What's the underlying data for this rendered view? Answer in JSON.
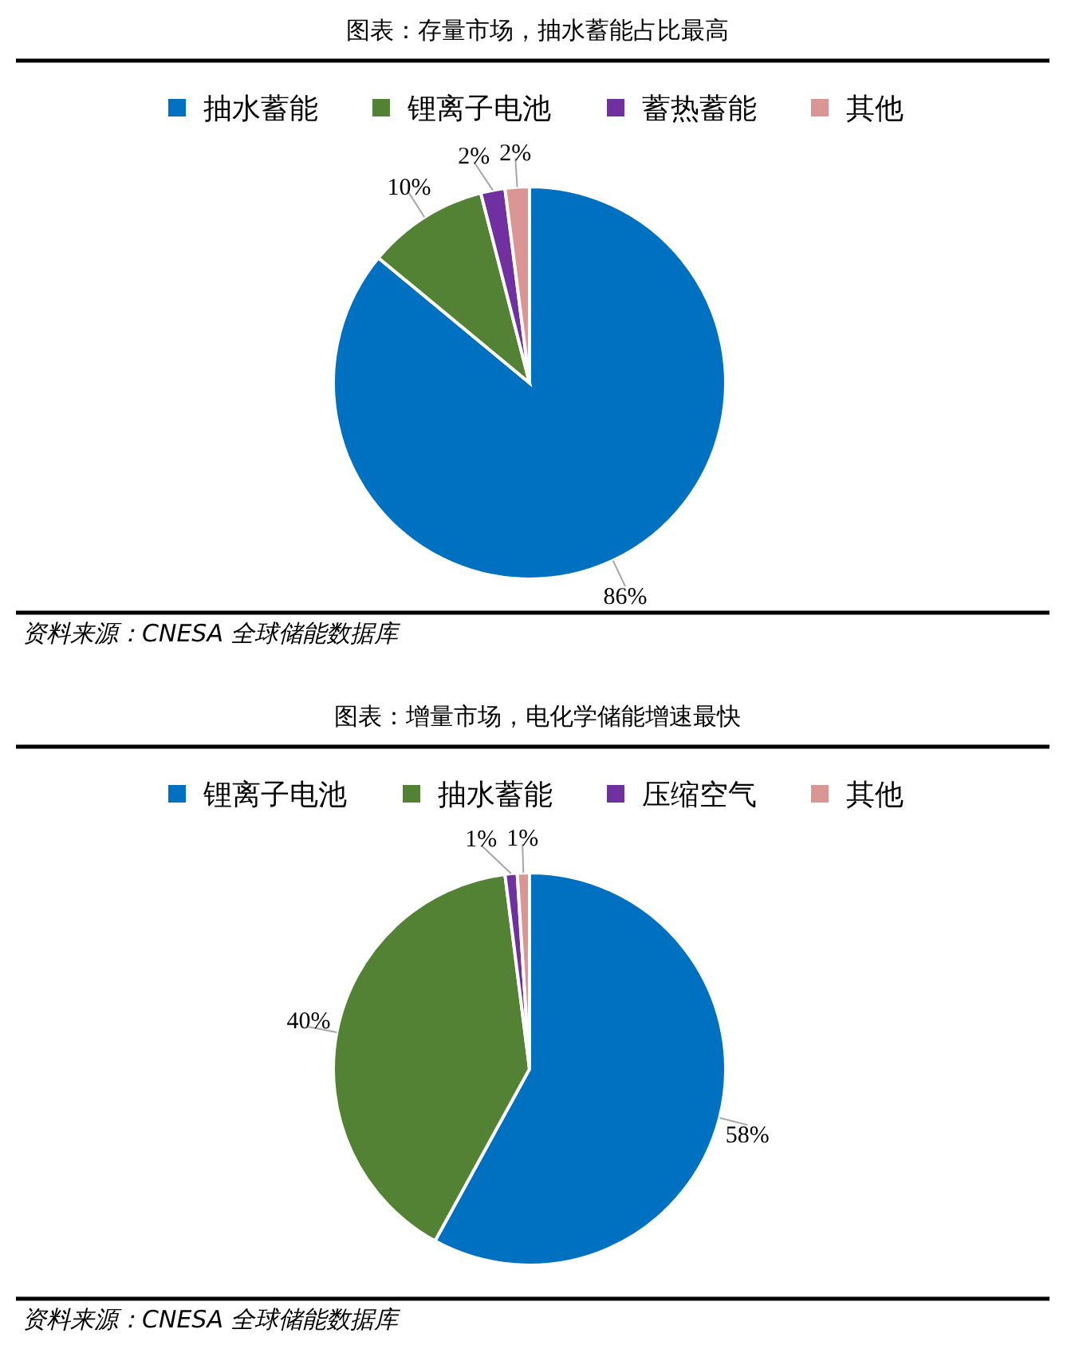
{
  "chart_data": [
    {
      "type": "pie",
      "title": "图表：存量市场，抽水蓄能占比最高",
      "categories": [
        "抽水蓄能",
        "锂离子电池",
        "蓄热蓄能",
        "其他"
      ],
      "values": [
        86,
        10,
        2,
        2
      ],
      "value_labels": [
        "86%",
        "10%",
        "2%",
        "2%"
      ],
      "colors": [
        "#0070c0",
        "#548235",
        "#7030a0",
        "#d99694"
      ],
      "legend": "top",
      "annotations": [
        "资料来源：CNESA 全球储能数据库"
      ]
    },
    {
      "type": "pie",
      "title": "图表：增量市场，电化学储能增速最快",
      "categories": [
        "锂离子电池",
        "抽水蓄能",
        "压缩空气",
        "其他"
      ],
      "values": [
        58,
        40,
        1,
        1
      ],
      "value_labels": [
        "58%",
        "40%",
        "1%",
        "1%"
      ],
      "colors": [
        "#0070c0",
        "#548235",
        "#7030a0",
        "#d99694"
      ],
      "legend": "top",
      "annotations": [
        "资料来源：CNESA 全球储能数据库"
      ]
    }
  ]
}
